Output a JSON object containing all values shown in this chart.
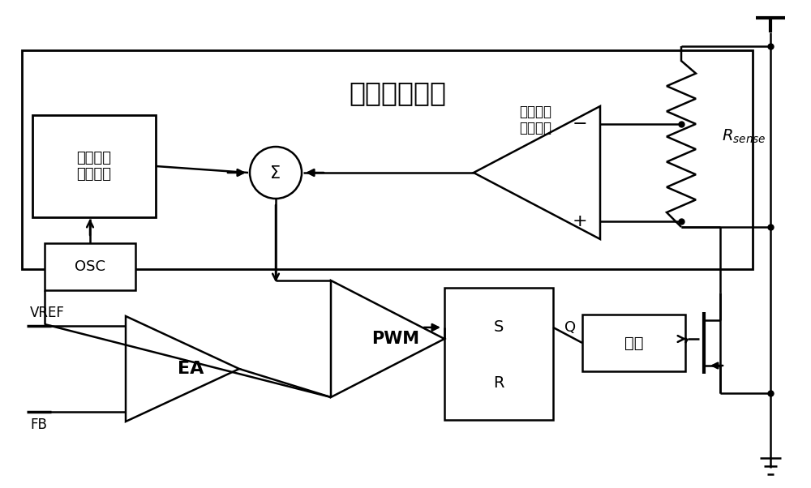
{
  "bg": "#ffffff",
  "lc": "#000000",
  "main_title": "斜坡补偿电路",
  "upper_sense_label": "上管电流\n采样电路",
  "slope_gen_label": "斜坡信号\n产生电路",
  "osc_label": "OSC",
  "sr_s": "S",
  "sr_r": "R",
  "sr_q": "Q",
  "driver_label": "驱动",
  "ea_label": "EA",
  "pwm_label": "PWM",
  "vref_label": "VREF",
  "fb_label": "FB",
  "rsense_label": "R",
  "rsense_sub": "sense",
  "minus_label": "−",
  "plus_label": "+"
}
